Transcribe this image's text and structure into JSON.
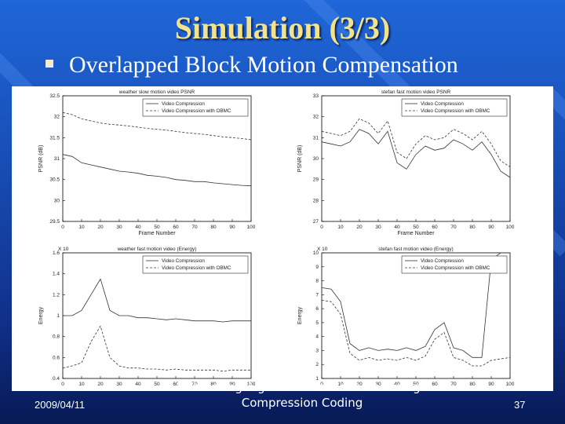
{
  "slide": {
    "title": "Simulation (3/3)",
    "bullet": "Overlapped Block Motion Compensation",
    "footer_date": "2009/04/11",
    "footer_title": "Deblocking Algorithms in Video and Image Compression Coding",
    "page_number": "37"
  },
  "chart_data": [
    {
      "type": "line",
      "title": "weather slow motion video PSNR",
      "xlabel": "Frame Number",
      "ylabel": "PSNR (dB)",
      "xlim": [
        0,
        100
      ],
      "ylim": [
        29.5,
        32.5
      ],
      "xticks": [
        0,
        10,
        20,
        30,
        40,
        50,
        60,
        70,
        80,
        90,
        100
      ],
      "yticks": [
        "29.5",
        "30",
        "30.5",
        "31",
        "31.5",
        "32",
        "32.5"
      ],
      "legend": "top-right",
      "series": [
        {
          "name": "Video Compression",
          "x": [
            0,
            5,
            10,
            15,
            20,
            25,
            30,
            35,
            40,
            45,
            50,
            55,
            60,
            65,
            70,
            75,
            80,
            85,
            90,
            95,
            100
          ],
          "y": [
            31.1,
            31.05,
            30.9,
            30.85,
            30.8,
            30.75,
            30.7,
            30.68,
            30.65,
            30.6,
            30.58,
            30.55,
            30.5,
            30.48,
            30.45,
            30.45,
            30.42,
            30.4,
            30.38,
            30.36,
            30.35
          ]
        },
        {
          "name": "Video Compression with OBMC",
          "x": [
            0,
            5,
            10,
            15,
            20,
            25,
            30,
            35,
            40,
            45,
            50,
            55,
            60,
            65,
            70,
            75,
            80,
            85,
            90,
            95,
            100
          ],
          "y": [
            32.1,
            32.05,
            31.95,
            31.9,
            31.85,
            31.82,
            31.8,
            31.78,
            31.75,
            31.72,
            31.7,
            31.68,
            31.65,
            31.62,
            31.6,
            31.58,
            31.55,
            31.52,
            31.5,
            31.48,
            31.45
          ]
        }
      ]
    },
    {
      "type": "line",
      "title": "stefan fast motion video PSNR",
      "xlabel": "Frame Number",
      "ylabel": "PSNR (dB)",
      "xlim": [
        0,
        100
      ],
      "ylim": [
        27,
        33
      ],
      "xticks": [
        0,
        10,
        20,
        30,
        40,
        50,
        60,
        70,
        80,
        90,
        100
      ],
      "yticks": [
        "27",
        "28",
        "29",
        "30",
        "31",
        "32",
        "33"
      ],
      "legend": "top-right",
      "series": [
        {
          "name": "Video Compression",
          "x": [
            0,
            5,
            10,
            15,
            20,
            25,
            30,
            35,
            40,
            45,
            50,
            55,
            60,
            65,
            70,
            75,
            80,
            85,
            90,
            95,
            100
          ],
          "y": [
            30.8,
            30.7,
            30.6,
            30.8,
            31.4,
            31.2,
            30.7,
            31.3,
            29.8,
            29.5,
            30.2,
            30.6,
            30.4,
            30.5,
            30.9,
            30.7,
            30.4,
            30.8,
            30.2,
            29.4,
            29.1
          ]
        },
        {
          "name": "Video Compression with OBMC",
          "x": [
            0,
            5,
            10,
            15,
            20,
            25,
            30,
            35,
            40,
            45,
            50,
            55,
            60,
            65,
            70,
            75,
            80,
            85,
            90,
            95,
            100
          ],
          "y": [
            31.3,
            31.2,
            31.1,
            31.3,
            31.9,
            31.7,
            31.2,
            31.8,
            30.3,
            30.0,
            30.7,
            31.1,
            30.9,
            31.0,
            31.4,
            31.2,
            30.9,
            31.3,
            30.7,
            29.9,
            29.6
          ]
        }
      ]
    },
    {
      "type": "line",
      "title": "weather fast motion video (Energy)",
      "xlabel": "",
      "ylabel": "Energy",
      "exponent": "X 10",
      "xlim": [
        0,
        100
      ],
      "ylim": [
        0.4,
        1.6
      ],
      "xticks": [
        0,
        10,
        20,
        30,
        40,
        50,
        60,
        70,
        80,
        90,
        100
      ],
      "yticks": [
        "0.4",
        "0.6",
        "0.8",
        "1",
        "1.2",
        "1.4",
        "1.6"
      ],
      "legend": "top-right",
      "series": [
        {
          "name": "Video Compression",
          "x": [
            0,
            5,
            10,
            15,
            20,
            25,
            30,
            35,
            40,
            45,
            50,
            55,
            60,
            65,
            70,
            75,
            80,
            85,
            90,
            95,
            100
          ],
          "y": [
            1.0,
            1.0,
            1.05,
            1.2,
            1.35,
            1.05,
            1.0,
            1.0,
            0.98,
            0.98,
            0.97,
            0.96,
            0.97,
            0.96,
            0.95,
            0.95,
            0.95,
            0.94,
            0.95,
            0.95,
            0.95
          ]
        },
        {
          "name": "Video Compression with OBMC",
          "x": [
            0,
            5,
            10,
            15,
            20,
            25,
            30,
            35,
            40,
            45,
            50,
            55,
            60,
            65,
            70,
            75,
            80,
            85,
            90,
            95,
            100
          ],
          "y": [
            0.5,
            0.52,
            0.55,
            0.75,
            0.9,
            0.6,
            0.52,
            0.5,
            0.5,
            0.49,
            0.49,
            0.48,
            0.49,
            0.48,
            0.48,
            0.48,
            0.48,
            0.47,
            0.48,
            0.48,
            0.48
          ]
        }
      ]
    },
    {
      "type": "line",
      "title": "stefan fast motion video (Energy)",
      "xlabel": "",
      "ylabel": "Energy",
      "exponent": "X 10",
      "xlim": [
        0,
        100
      ],
      "ylim": [
        1,
        10
      ],
      "xticks": [
        0,
        10,
        20,
        30,
        40,
        50,
        60,
        70,
        80,
        90,
        100
      ],
      "yticks": [
        "1",
        "2",
        "3",
        "4",
        "5",
        "6",
        "7",
        "8",
        "9",
        "10"
      ],
      "legend": "top-right",
      "series": [
        {
          "name": "Video Compression",
          "x": [
            0,
            5,
            10,
            15,
            20,
            25,
            30,
            35,
            40,
            45,
            50,
            55,
            60,
            65,
            70,
            75,
            80,
            85,
            90,
            95,
            100
          ],
          "y": [
            7.5,
            7.4,
            6.5,
            3.5,
            3.0,
            3.2,
            3.0,
            3.1,
            3.0,
            3.2,
            3.0,
            3.3,
            4.5,
            5.0,
            3.2,
            3.0,
            2.5,
            2.5,
            9.5,
            10,
            10
          ]
        },
        {
          "name": "Video Compression with OBMC",
          "x": [
            0,
            5,
            10,
            15,
            20,
            25,
            30,
            35,
            40,
            45,
            50,
            55,
            60,
            65,
            70,
            75,
            80,
            85,
            90,
            95,
            100
          ],
          "y": [
            6.6,
            6.5,
            5.6,
            2.8,
            2.3,
            2.5,
            2.3,
            2.4,
            2.3,
            2.5,
            2.3,
            2.6,
            3.8,
            4.3,
            2.5,
            2.3,
            1.9,
            1.9,
            2.3,
            2.4,
            2.5
          ]
        }
      ]
    }
  ]
}
